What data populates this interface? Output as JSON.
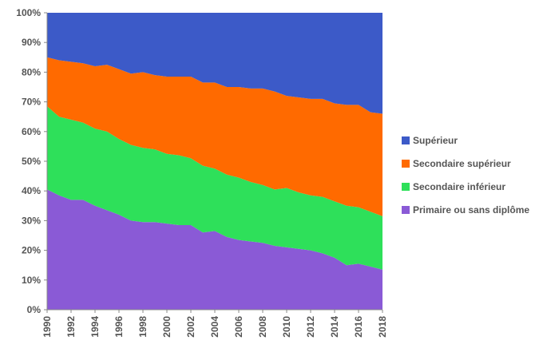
{
  "chart_data": {
    "type": "area",
    "stacked": true,
    "title": "",
    "xlabel": "",
    "ylabel": "",
    "ylim": [
      0,
      100
    ],
    "y_ticks": [
      "0%",
      "10%",
      "20%",
      "30%",
      "40%",
      "50%",
      "60%",
      "70%",
      "80%",
      "90%",
      "100%"
    ],
    "x": [
      1990,
      1991,
      1992,
      1993,
      1994,
      1995,
      1996,
      1997,
      1998,
      1999,
      2000,
      2001,
      2002,
      2003,
      2004,
      2005,
      2006,
      2007,
      2008,
      2009,
      2010,
      2011,
      2012,
      2013,
      2014,
      2015,
      2016,
      2017,
      2018
    ],
    "x_tick_labels": [
      "1990",
      "1992",
      "1994",
      "1996",
      "1998",
      "2000",
      "2002",
      "2004",
      "2006",
      "2008",
      "2010",
      "2012",
      "2014",
      "2016",
      "2018"
    ],
    "legend_position": "right",
    "grid": false,
    "series": [
      {
        "name": "Primaire ou sans diplôme",
        "color": "#8a5ad6",
        "values": [
          40.5,
          38.5,
          37,
          37,
          35,
          33.5,
          32,
          30,
          29.5,
          29.5,
          29,
          28.5,
          28.5,
          26,
          26.5,
          24.5,
          23.5,
          23,
          22.5,
          21.5,
          21,
          20.5,
          20,
          19,
          17.5,
          15,
          15.5,
          14.5,
          13.5
        ]
      },
      {
        "name": "Secondaire inférieur",
        "color": "#2ee05a",
        "values": [
          28,
          26.5,
          27,
          26,
          26,
          26.5,
          25.5,
          25.5,
          25,
          24.5,
          23.5,
          23.5,
          22.5,
          22.5,
          21,
          21,
          21,
          20,
          19.5,
          19,
          20,
          19,
          18.5,
          19,
          19,
          20,
          19,
          18.5,
          18
        ]
      },
      {
        "name": "Secondaire supérieur",
        "color": "#ff6a00",
        "values": [
          16.5,
          19,
          19.5,
          20,
          21,
          22.5,
          23.5,
          24,
          25.5,
          25,
          26,
          26.5,
          27.5,
          28,
          29,
          29.5,
          30.5,
          31.5,
          32.5,
          33,
          31,
          32,
          32.5,
          33,
          33,
          34,
          34.5,
          33.5,
          34.5
        ]
      },
      {
        "name": "Supérieur",
        "color": "#3c5ac8",
        "values": [
          15,
          16,
          16.5,
          17,
          18,
          17.5,
          19,
          20.5,
          20,
          21,
          21.5,
          21.5,
          21.5,
          23.5,
          23.5,
          25,
          25,
          25.5,
          25.5,
          26.5,
          28,
          28.5,
          29,
          29,
          30.5,
          31,
          31,
          33.5,
          34
        ]
      }
    ]
  }
}
